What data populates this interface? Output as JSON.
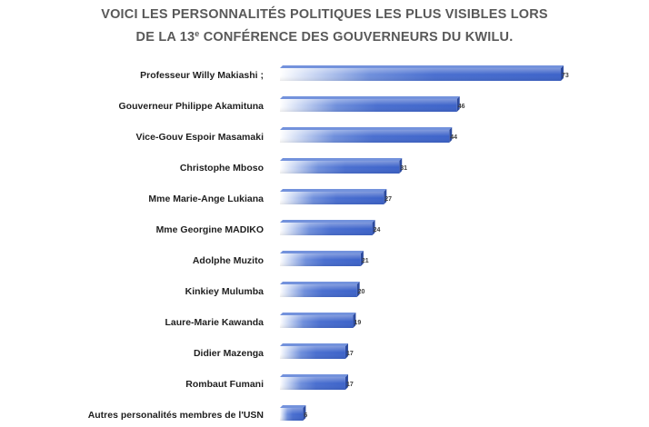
{
  "chart_data": {
    "type": "bar",
    "orientation": "horizontal",
    "title_line1": "VOICI LES PERSONNALITÉS POLITIQUES LES PLUS VISIBLES LORS",
    "title_line2_pre": "DE LA 13",
    "title_line2_sup": "e",
    "title_line2_post": " CONFÉRENCE DES GOUVERNEURS DU KWILU.",
    "categories": [
      "Professeur Willy Makiashi ;",
      "Gouverneur Philippe Akamituna",
      "Vice-Gouv Espoir Masamaki",
      "Christophe Mboso",
      "Mme  Marie-Ange Lukiana",
      "Mme Georgine MADIKO",
      "Adolphe Muzito",
      "Kinkiey Mulumba",
      "Laure-Marie Kawanda",
      "Didier Mazenga",
      "Rombaut Fumani",
      "Autres personalités membres de l'USN"
    ],
    "values": [
      73,
      46,
      44,
      31,
      27,
      24,
      21,
      20,
      19,
      17,
      17,
      6
    ],
    "xlim": [
      0,
      75
    ],
    "grid": false,
    "legend": "none",
    "colors": {
      "bar_dark": "#3a60c8",
      "bar_light": "#ffffff",
      "bar_edge": "#2c4a9e",
      "title": "#595959"
    }
  }
}
